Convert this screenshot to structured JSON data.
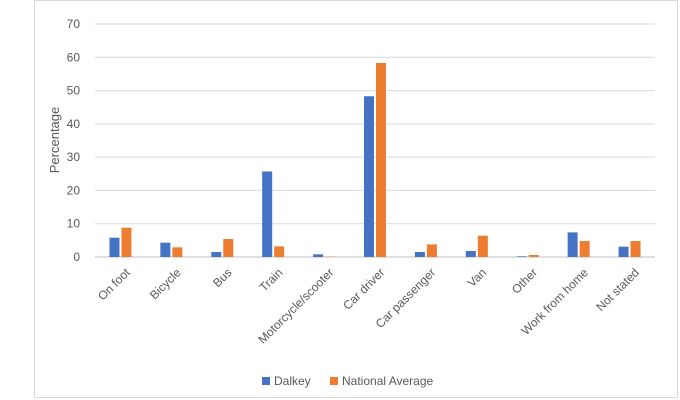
{
  "chart_data": {
    "type": "bar",
    "title": "",
    "xlabel": "",
    "ylabel": "Percentage",
    "ylim": [
      0,
      70
    ],
    "yticks": [
      0,
      10,
      20,
      30,
      40,
      50,
      60,
      70
    ],
    "grid": true,
    "legend_position": "bottom",
    "categories": [
      "On foot",
      "Bicycle",
      "Bus",
      "Train",
      "Motorcycle/scooter",
      "Car driver",
      "Car passenger",
      "Van",
      "Other",
      "Work from home",
      "Not stated"
    ],
    "series": [
      {
        "name": "Dalkey",
        "color": "#4472C4",
        "values": [
          5.8,
          4.3,
          1.5,
          25.7,
          0.8,
          48.3,
          1.5,
          1.8,
          0.2,
          7.4,
          3.1
        ]
      },
      {
        "name": "National Average",
        "color": "#ED7D31",
        "values": [
          8.8,
          2.9,
          5.4,
          3.2,
          0.1,
          58.3,
          3.8,
          6.4,
          0.6,
          4.8,
          4.8
        ]
      }
    ]
  }
}
